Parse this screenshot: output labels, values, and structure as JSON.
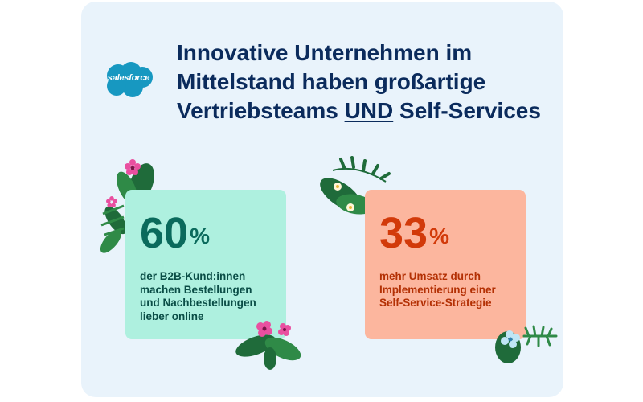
{
  "logo": {
    "text": "salesforce",
    "color": "#1798c1"
  },
  "headline": {
    "line1": "Innovative Unternehmen im",
    "line2": "Mittelstand haben großartige",
    "line3_before": "Vertriebsteams ",
    "line3_emphasis": "UND",
    "line3_after": " Self-Services",
    "color": "#0b2b5c"
  },
  "stats": [
    {
      "number": "60",
      "unit": "%",
      "lines": [
        "der B2B-Kund:innen",
        "machen Bestellungen",
        "und Nachbestellungen",
        "lieber online"
      ],
      "card_color": "#aef0df",
      "text_color": "#0a6a5c"
    },
    {
      "number": "33",
      "unit": "%",
      "lines": [
        "mehr Umsatz durch",
        "Implementierung einer",
        "Self-Service-Strategie"
      ],
      "card_color": "#fcb69e",
      "text_color": "#d23a0a"
    }
  ],
  "colors": {
    "panel_background": "#e9f3fb",
    "leaf_dark": "#1f6b3a",
    "leaf_mid": "#2f8a47",
    "flower_pink": "#e94fa0"
  },
  "icons": [
    "salesforce-cloud-logo",
    "leaf-cluster-icon",
    "flower-icon"
  ]
}
